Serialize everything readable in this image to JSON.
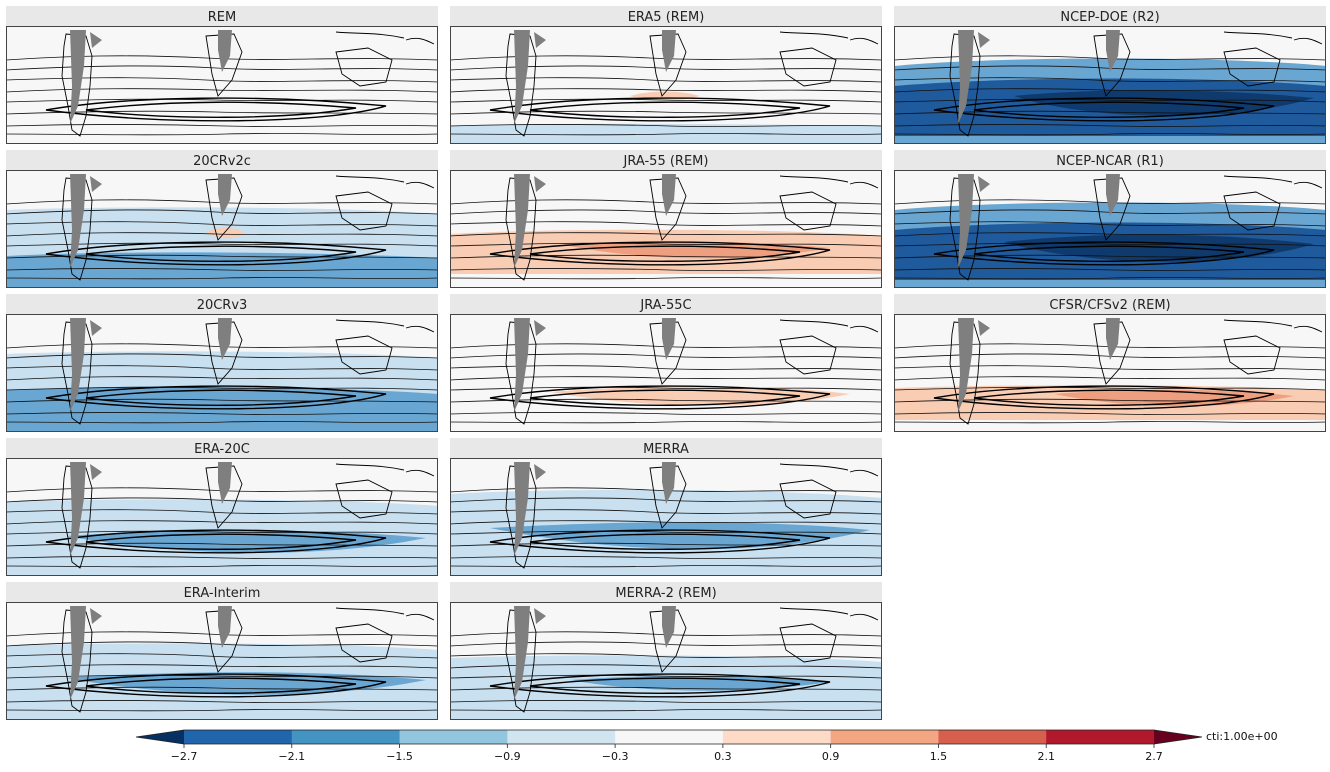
{
  "chart_data": {
    "type": "heatmap",
    "layout": "small-multiples map grid, 5 rows x 3 columns",
    "panels": [
      {
        "title": "REM",
        "field": "neutral"
      },
      {
        "title": "ERA5 (REM)",
        "field": "near-zero, light blue south, weak red patches"
      },
      {
        "title": "NCEP-DOE (R2)",
        "field": "strong negative (dark blue) subtropical band"
      },
      {
        "title": "20CRv2c",
        "field": "moderate negative, weak positive near Africa"
      },
      {
        "title": "JRA-55 (REM)",
        "field": "moderate positive (light red) band"
      },
      {
        "title": "NCEP-NCAR (R1)",
        "field": "strong negative (dark blue) subtropical band"
      },
      {
        "title": "20CRv3",
        "field": "moderate negative"
      },
      {
        "title": "JRA-55C",
        "field": "weak positive band"
      },
      {
        "title": "CFSR/CFSv2 (REM)",
        "field": "moderate positive band"
      },
      {
        "title": "ERA-20C",
        "field": "moderate negative"
      },
      {
        "title": "MERRA",
        "field": "moderate negative"
      },
      {
        "title": "ERA-Interim",
        "field": "moderate negative"
      },
      {
        "title": "MERRA-2 (REM)",
        "field": "weak negative"
      }
    ],
    "colorbar": {
      "ticks": [
        "−2.7",
        "−2.1",
        "−1.5",
        "−0.9",
        "−0.3",
        "0.3",
        "0.9",
        "1.5",
        "2.1",
        "2.7"
      ],
      "levels": [
        -2.7,
        -2.1,
        -1.5,
        -0.9,
        -0.3,
        0.3,
        0.9,
        1.5,
        2.1,
        2.7
      ],
      "colors": [
        "#2166ac",
        "#4393c3",
        "#92c5de",
        "#d1e5f0",
        "#f7f7f7",
        "#fddbc7",
        "#f4a582",
        "#d6604d",
        "#b2182b"
      ],
      "under_color": "#053061",
      "over_color": "#67001f",
      "extend": "both",
      "unit_label": "cti:1.00e+00"
    },
    "colors": {
      "strong_neg": "#1f5a9c",
      "deep_neg": "#0e3a6e",
      "mid_neg": "#6aa6d2",
      "light_neg": "#c9e0f0",
      "light_pos": "#f9cdb4",
      "mid_pos": "#ee9f80",
      "land_mask": "#7f7f7f",
      "map_bg": "#f7f7f7",
      "title_bg": "#e8e8e8"
    }
  }
}
